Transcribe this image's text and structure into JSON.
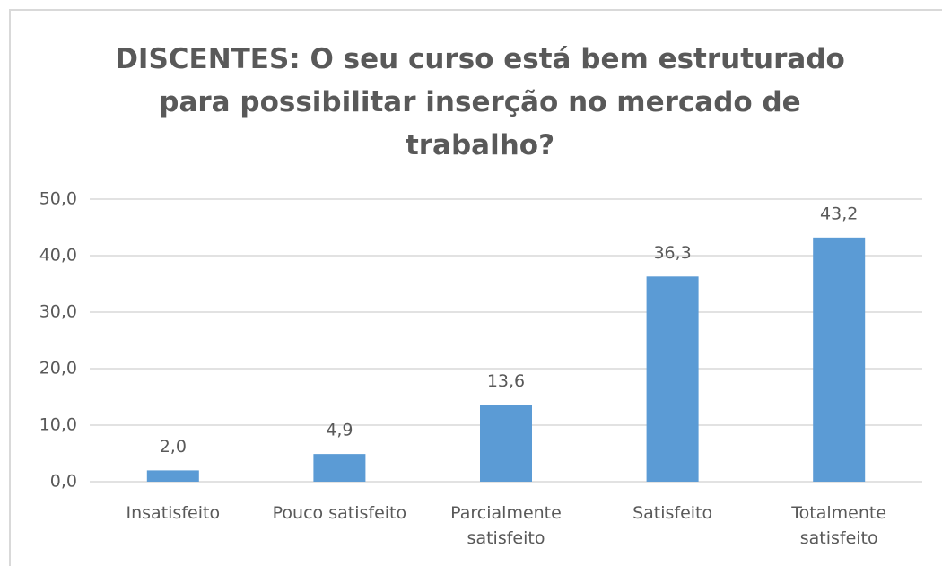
{
  "chart_data": {
    "type": "bar",
    "title": "DISCENTES: O seu curso está bem estruturado para possibilitar inserção no mercado de trabalho?",
    "categories": [
      "Insatisfeito",
      "Pouco satisfeito",
      "Parcialmente satisfeito",
      "Satisfeito",
      "Totalmente satisfeito"
    ],
    "values": [
      2.0,
      4.9,
      13.6,
      36.3,
      43.2
    ],
    "value_labels": [
      "2,0",
      "4,9",
      "13,6",
      "36,3",
      "43,2"
    ],
    "color": "#5b9bd5",
    "ylim": [
      0,
      50
    ],
    "yticks": [
      {
        "value": 0,
        "label": "0,0"
      },
      {
        "value": 10,
        "label": "10,0"
      },
      {
        "value": 20,
        "label": "20,0"
      },
      {
        "value": 30,
        "label": "30,0"
      },
      {
        "value": 40,
        "label": "40,0"
      },
      {
        "value": 50,
        "label": "50,0"
      }
    ],
    "grid": true
  }
}
